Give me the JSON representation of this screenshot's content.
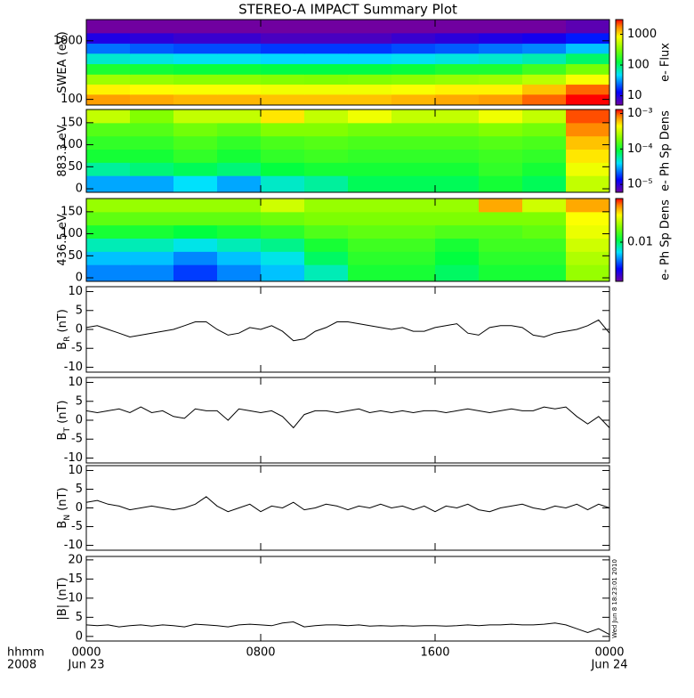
{
  "chart_data": {
    "type": "multi",
    "title": "STEREO-A IMPACT Summary Plot",
    "xlim": [
      0,
      24
    ],
    "xticks": [
      {
        "value": 0,
        "label": "0000"
      },
      {
        "value": 8,
        "label": "0800"
      },
      {
        "value": 16,
        "label": "1600"
      },
      {
        "value": 24,
        "label": "0000"
      }
    ],
    "xdates": [
      {
        "value": 0,
        "label": "Jun 23"
      },
      {
        "value": 24,
        "label": "Jun 24"
      }
    ],
    "xprefix": [
      "hhmm",
      "2008"
    ],
    "timestamp": "Wed Jun 8 18:23:01 2010",
    "tbins": [
      0,
      2,
      4,
      6,
      8,
      10,
      12,
      14,
      16,
      18,
      20,
      22,
      24
    ],
    "x": [
      0,
      0.5,
      1,
      1.5,
      2,
      2.5,
      3,
      3.5,
      4,
      4.5,
      5,
      5.5,
      6,
      6.5,
      7,
      7.5,
      8,
      8.5,
      9,
      9.5,
      10,
      10.5,
      11,
      11.5,
      12,
      12.5,
      13,
      13.5,
      14,
      14.5,
      15,
      15.5,
      16,
      16.5,
      17,
      17.5,
      18,
      18.5,
      19,
      19.5,
      20,
      20.5,
      21,
      21.5,
      22,
      22.5,
      23,
      23.5,
      24
    ],
    "panels": [
      {
        "type": "heatmap",
        "ylabel": [
          "SWEA (eV)"
        ],
        "ylog": true,
        "ylim": [
          80,
          2300
        ],
        "yticks": [
          100,
          1000
        ],
        "y": [
          100,
          150,
          220,
          330,
          500,
          750,
          1100,
          1700
        ],
        "zlog": true,
        "zlim": [
          5,
          3000
        ],
        "zticks": [
          10,
          100,
          1000
        ],
        "zlabel": "e- Flux",
        "z": [
          [
            1500,
            1400,
            1300,
            1300,
            1200,
            1200,
            1200,
            1300,
            1400,
            1500,
            2000,
            3000
          ],
          [
            900,
            850,
            800,
            800,
            750,
            750,
            750,
            800,
            900,
            900,
            1200,
            2000
          ],
          [
            400,
            380,
            350,
            350,
            330,
            320,
            330,
            350,
            380,
            400,
            500,
            800
          ],
          [
            150,
            140,
            130,
            130,
            120,
            120,
            120,
            130,
            150,
            150,
            200,
            300
          ],
          [
            60,
            55,
            50,
            50,
            45,
            45,
            45,
            50,
            55,
            60,
            70,
            100
          ],
          [
            25,
            22,
            20,
            20,
            18,
            18,
            18,
            20,
            22,
            25,
            28,
            40
          ],
          [
            10,
            9,
            8,
            8,
            7,
            7,
            7,
            8,
            9,
            10,
            11,
            15
          ],
          [
            5,
            5,
            5,
            5,
            5,
            5,
            5,
            5,
            5,
            5,
            5,
            6
          ]
        ]
      },
      {
        "type": "heatmap",
        "ylabel": [
          "883.3 eV"
        ],
        "ylog": false,
        "ylim": [
          -8,
          180
        ],
        "yticks": [
          0,
          50,
          100,
          150
        ],
        "y": [
          15,
          45,
          75,
          105,
          135,
          165
        ],
        "zlog": true,
        "zlim": [
          6e-06,
          0.0013
        ],
        "zticks": [
          {
            "value": 0.001,
            "label": "10⁻³"
          },
          {
            "value": 0.0001,
            "label": "10⁻⁴"
          },
          {
            "value": 1e-05,
            "label": "10⁻⁵"
          }
        ],
        "zlabel": "e- Ph Sp Dens",
        "z": [
          [
            3e-05,
            3e-05,
            4e-05,
            3e-05,
            5e-05,
            6e-05,
            8e-05,
            8e-05,
            8e-05,
            0.0001,
            8e-05,
            0.0003
          ],
          [
            6e-05,
            7e-05,
            8e-05,
            7e-05,
            9e-05,
            0.0001,
            0.0001,
            0.0001,
            0.0001,
            0.00012,
            0.0001,
            0.0004
          ],
          [
            0.0001,
            0.0001,
            0.00012,
            0.0001,
            0.00012,
            0.00013,
            0.00012,
            0.00012,
            0.00012,
            0.00013,
            0.00012,
            0.0005
          ],
          [
            0.00012,
            0.00012,
            0.00014,
            0.00012,
            0.00014,
            0.00015,
            0.00014,
            0.00014,
            0.00014,
            0.00015,
            0.00014,
            0.0006
          ],
          [
            0.00015,
            0.00015,
            0.00018,
            0.00016,
            0.0002,
            0.0002,
            0.00018,
            0.00018,
            0.00018,
            0.0002,
            0.00018,
            0.0008
          ],
          [
            0.0003,
            0.0002,
            0.0003,
            0.0003,
            0.0005,
            0.0003,
            0.0004,
            0.0003,
            0.0003,
            0.0004,
            0.0003,
            0.001
          ]
        ]
      },
      {
        "type": "heatmap",
        "ylabel": [
          "436.5 eV"
        ],
        "ylog": false,
        "ylim": [
          -8,
          180
        ],
        "yticks": [
          0,
          50,
          100,
          150
        ],
        "y": [
          15,
          45,
          75,
          105,
          135,
          165
        ],
        "zlog": true,
        "zlim": [
          0.002,
          0.06
        ],
        "zticks": [
          0.01
        ],
        "zlabel": "e- Ph Sp Dens",
        "z": [
          [
            0.005,
            0.005,
            0.004,
            0.005,
            0.006,
            0.008,
            0.012,
            0.012,
            0.01,
            0.012,
            0.012,
            0.02
          ],
          [
            0.006,
            0.006,
            0.005,
            0.006,
            0.007,
            0.01,
            0.013,
            0.013,
            0.011,
            0.013,
            0.013,
            0.022
          ],
          [
            0.008,
            0.008,
            0.007,
            0.008,
            0.009,
            0.012,
            0.014,
            0.014,
            0.012,
            0.014,
            0.014,
            0.025
          ],
          [
            0.012,
            0.012,
            0.011,
            0.012,
            0.013,
            0.015,
            0.016,
            0.016,
            0.015,
            0.015,
            0.016,
            0.028
          ],
          [
            0.016,
            0.016,
            0.016,
            0.016,
            0.017,
            0.018,
            0.018,
            0.018,
            0.018,
            0.018,
            0.018,
            0.03
          ],
          [
            0.02,
            0.02,
            0.02,
            0.02,
            0.025,
            0.02,
            0.02,
            0.02,
            0.02,
            0.04,
            0.025,
            0.04
          ]
        ]
      },
      {
        "type": "line",
        "ylabel": [
          "B",
          "R",
          " (nT)"
        ],
        "ylim": [
          -11.3,
          11.3
        ],
        "yticks": [
          -10,
          -5,
          0,
          5,
          10
        ],
        "color": "#000000",
        "values": [
          0.5,
          1,
          0,
          -1,
          -2,
          -1.5,
          -1,
          -0.5,
          0,
          1,
          2,
          2,
          0,
          -1.5,
          -1,
          0.5,
          0,
          1,
          -0.5,
          -3,
          -2.5,
          -0.5,
          0.5,
          2,
          2,
          1.5,
          1,
          0.5,
          0,
          0.5,
          -0.5,
          -0.5,
          0.5,
          1,
          1.5,
          -1,
          -1.5,
          0.5,
          1,
          1,
          0.5,
          -1.5,
          -2,
          -1,
          -0.5,
          0,
          1,
          2.5,
          -1
        ]
      },
      {
        "type": "line",
        "ylabel": [
          "B",
          "T",
          " (nT)"
        ],
        "ylim": [
          -11.3,
          11.3
        ],
        "yticks": [
          -10,
          -5,
          0,
          5,
          10
        ],
        "color": "#000000",
        "values": [
          2.5,
          2,
          2.5,
          3,
          2,
          3.5,
          2,
          2.5,
          1,
          0.5,
          3,
          2.5,
          2.5,
          0,
          3,
          2.5,
          2,
          2.5,
          1,
          -2,
          1.5,
          2.5,
          2.5,
          2,
          2.5,
          3,
          2,
          2.5,
          2,
          2.5,
          2,
          2.5,
          2.5,
          2,
          2.5,
          3,
          2.5,
          2,
          2.5,
          3,
          2.5,
          2.5,
          3.5,
          3,
          3.5,
          1,
          -1,
          1,
          -2
        ]
      },
      {
        "type": "line",
        "ylabel": [
          "B",
          "N",
          " (nT)"
        ],
        "ylim": [
          -11.3,
          11.3
        ],
        "yticks": [
          -10,
          -5,
          0,
          5,
          10
        ],
        "color": "#000000",
        "values": [
          1.5,
          2,
          1,
          0.5,
          -0.5,
          0,
          0.5,
          0,
          -0.5,
          0,
          1,
          3,
          0.5,
          -1,
          0,
          1,
          -1,
          0.5,
          0,
          1.5,
          -0.5,
          0,
          1,
          0.5,
          -0.5,
          0.5,
          0,
          1,
          0,
          0.5,
          -0.5,
          0.5,
          -1,
          0.5,
          0,
          1,
          -0.5,
          -1,
          0,
          0.5,
          1,
          0,
          -0.5,
          0.5,
          0,
          1,
          -0.5,
          1,
          0
        ]
      },
      {
        "type": "line",
        "ylabel": [
          "|B| (nT)"
        ],
        "ylim": [
          -1.2,
          20.9
        ],
        "yticks": [
          0,
          5,
          10,
          15,
          20
        ],
        "color": "#000000",
        "values": [
          3,
          2.8,
          3,
          2.5,
          2.8,
          3,
          2.7,
          3,
          2.8,
          2.5,
          3.2,
          3,
          2.8,
          2.5,
          3,
          3.2,
          3,
          2.8,
          3.5,
          3.8,
          2.5,
          2.8,
          3,
          3,
          2.8,
          3,
          2.7,
          2.8,
          2.7,
          2.8,
          2.7,
          2.8,
          2.8,
          2.7,
          2.8,
          3,
          2.8,
          3,
          3,
          3.2,
          3,
          3,
          3.2,
          3.5,
          3,
          2,
          1,
          2,
          0.5
        ]
      }
    ]
  }
}
